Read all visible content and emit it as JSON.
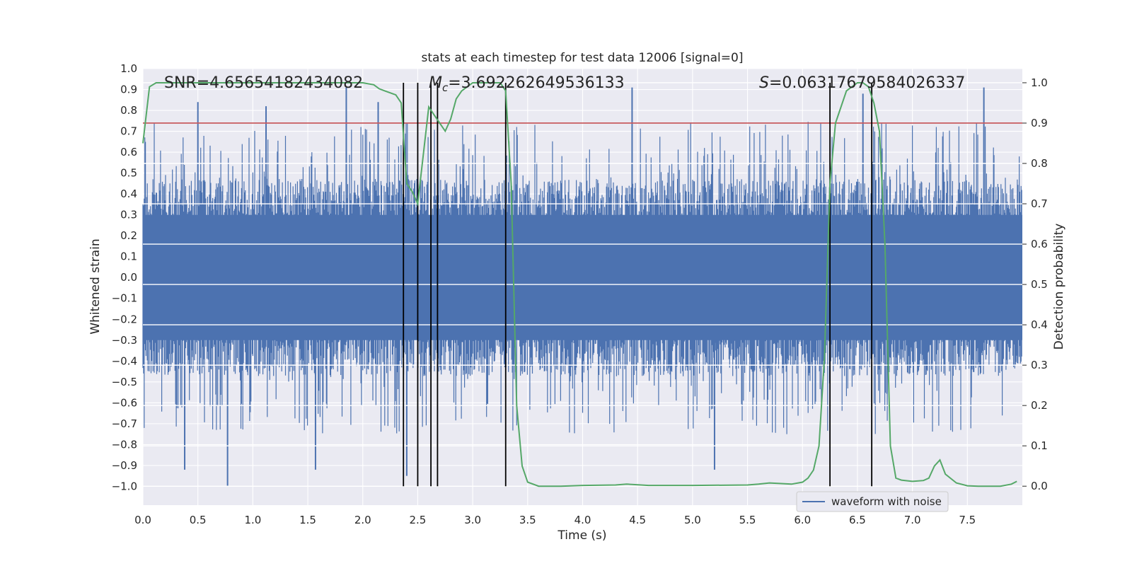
{
  "chart_data": {
    "type": "line",
    "title": "stats at each timestep for test data 12006 [signal=0]",
    "xlabel": "Time (s)",
    "ylabel": "Whitened strain",
    "y2label": "Detection probability",
    "xlim": [
      0.0,
      8.0
    ],
    "ylim": [
      -1.09,
      1.0
    ],
    "y2lim": [
      -0.047,
      1.035
    ],
    "x_ticks": [
      0.0,
      0.5,
      1.0,
      1.5,
      2.0,
      2.5,
      3.0,
      3.5,
      4.0,
      4.5,
      5.0,
      5.5,
      6.0,
      6.5,
      7.0,
      7.5
    ],
    "x_tick_labels": [
      "0.0",
      "0.5",
      "1.0",
      "1.5",
      "2.0",
      "2.5",
      "3.0",
      "3.5",
      "4.0",
      "4.5",
      "5.0",
      "5.5",
      "6.0",
      "6.5",
      "7.0",
      "7.5"
    ],
    "y_ticks": [
      1.0,
      0.9,
      0.8,
      0.7,
      0.6,
      0.5,
      0.4,
      0.3,
      0.2,
      0.1,
      0.0,
      -0.1,
      -0.2,
      -0.3,
      -0.4,
      -0.5,
      -0.6,
      -0.7,
      -0.8,
      -0.9,
      -1.0
    ],
    "y_tick_labels": [
      "1.0",
      "0.9",
      "0.8",
      "0.7",
      "0.6",
      "0.5",
      "0.4",
      "0.3",
      "0.2",
      "0.1",
      "0.0",
      "−0.1",
      "−0.2",
      "−0.3",
      "−0.4",
      "−0.5",
      "−0.6",
      "−0.7",
      "−0.8",
      "−0.9",
      "−1.0"
    ],
    "y2_ticks": [
      1.0,
      0.9,
      0.8,
      0.7,
      0.6,
      0.5,
      0.4,
      0.3,
      0.2,
      0.1,
      0.0
    ],
    "y2_tick_labels": [
      "1.0",
      "0.9",
      "0.8",
      "0.7",
      "0.6",
      "0.5",
      "0.4",
      "0.3",
      "0.2",
      "0.1",
      "0.0"
    ],
    "grid": true,
    "legend": {
      "location": "lower-right",
      "entries": [
        "waveform with noise"
      ]
    },
    "annotations": {
      "snr": "SNR=4.65654182434082",
      "mc_symbol": "M",
      "mc_subscript": "c",
      "mc_value": "=3.692262649536133",
      "s_symbol": "S",
      "s_value": "=0.06317679584026337"
    },
    "series": [
      {
        "name": "waveform with noise",
        "axis": "left",
        "style": "dense-noise",
        "color": "#4c72b0",
        "envelope_typical": [
          -0.45,
          0.45
        ],
        "peaks": [
          {
            "x": 0.5,
            "y": 0.84
          },
          {
            "x": 0.77,
            "y": -1.0
          },
          {
            "x": 1.12,
            "y": 0.82
          },
          {
            "x": 1.85,
            "y": 0.91
          },
          {
            "x": 2.14,
            "y": 0.84
          },
          {
            "x": 2.4,
            "y": -0.95
          },
          {
            "x": 4.45,
            "y": 0.91
          },
          {
            "x": 5.2,
            "y": -0.92
          },
          {
            "x": 6.55,
            "y": 0.88
          },
          {
            "x": 7.65,
            "y": 0.91
          },
          {
            "x": 0.38,
            "y": -0.92
          },
          {
            "x": 1.57,
            "y": -0.92
          }
        ]
      },
      {
        "name": "detection probability",
        "axis": "right",
        "color": "#55a868",
        "x": [
          0.0,
          0.06,
          0.12,
          0.2,
          0.4,
          0.8,
          1.2,
          1.6,
          2.0,
          2.1,
          2.15,
          2.2,
          2.3,
          2.35,
          2.4,
          2.45,
          2.5,
          2.55,
          2.6,
          2.65,
          2.7,
          2.75,
          2.8,
          2.85,
          2.9,
          3.0,
          3.1,
          3.2,
          3.25,
          3.3,
          3.35,
          3.4,
          3.45,
          3.5,
          3.6,
          3.8,
          4.0,
          4.3,
          4.4,
          4.6,
          5.0,
          5.5,
          5.6,
          5.7,
          5.9,
          6.0,
          6.05,
          6.1,
          6.15,
          6.2,
          6.25,
          6.3,
          6.4,
          6.5,
          6.55,
          6.6,
          6.65,
          6.7,
          6.75,
          6.8,
          6.85,
          6.9,
          7.0,
          7.1,
          7.15,
          7.2,
          7.25,
          7.3,
          7.4,
          7.5,
          7.6,
          7.8,
          7.9,
          7.95
        ],
        "values": [
          0.85,
          0.99,
          1.0,
          1.0,
          1.0,
          1.0,
          1.0,
          1.0,
          1.0,
          0.995,
          0.985,
          0.98,
          0.97,
          0.95,
          0.75,
          0.73,
          0.7,
          0.82,
          0.94,
          0.92,
          0.9,
          0.88,
          0.91,
          0.96,
          0.98,
          1.0,
          1.0,
          1.0,
          1.0,
          0.98,
          0.75,
          0.2,
          0.05,
          0.01,
          0.0,
          0.0,
          0.002,
          0.003,
          0.005,
          0.002,
          0.002,
          0.003,
          0.005,
          0.008,
          0.005,
          0.01,
          0.02,
          0.04,
          0.1,
          0.32,
          0.75,
          0.9,
          0.98,
          1.0,
          1.0,
          0.99,
          0.95,
          0.88,
          0.6,
          0.1,
          0.02,
          0.015,
          0.012,
          0.014,
          0.02,
          0.05,
          0.065,
          0.03,
          0.008,
          0.001,
          0.0,
          0.0,
          0.005,
          0.012
        ]
      }
    ],
    "threshold": {
      "axis": "right",
      "value": 0.9,
      "color": "#c44e52"
    },
    "markers": [
      2.37,
      2.5,
      2.62,
      2.68,
      3.3,
      6.25,
      6.63
    ]
  }
}
